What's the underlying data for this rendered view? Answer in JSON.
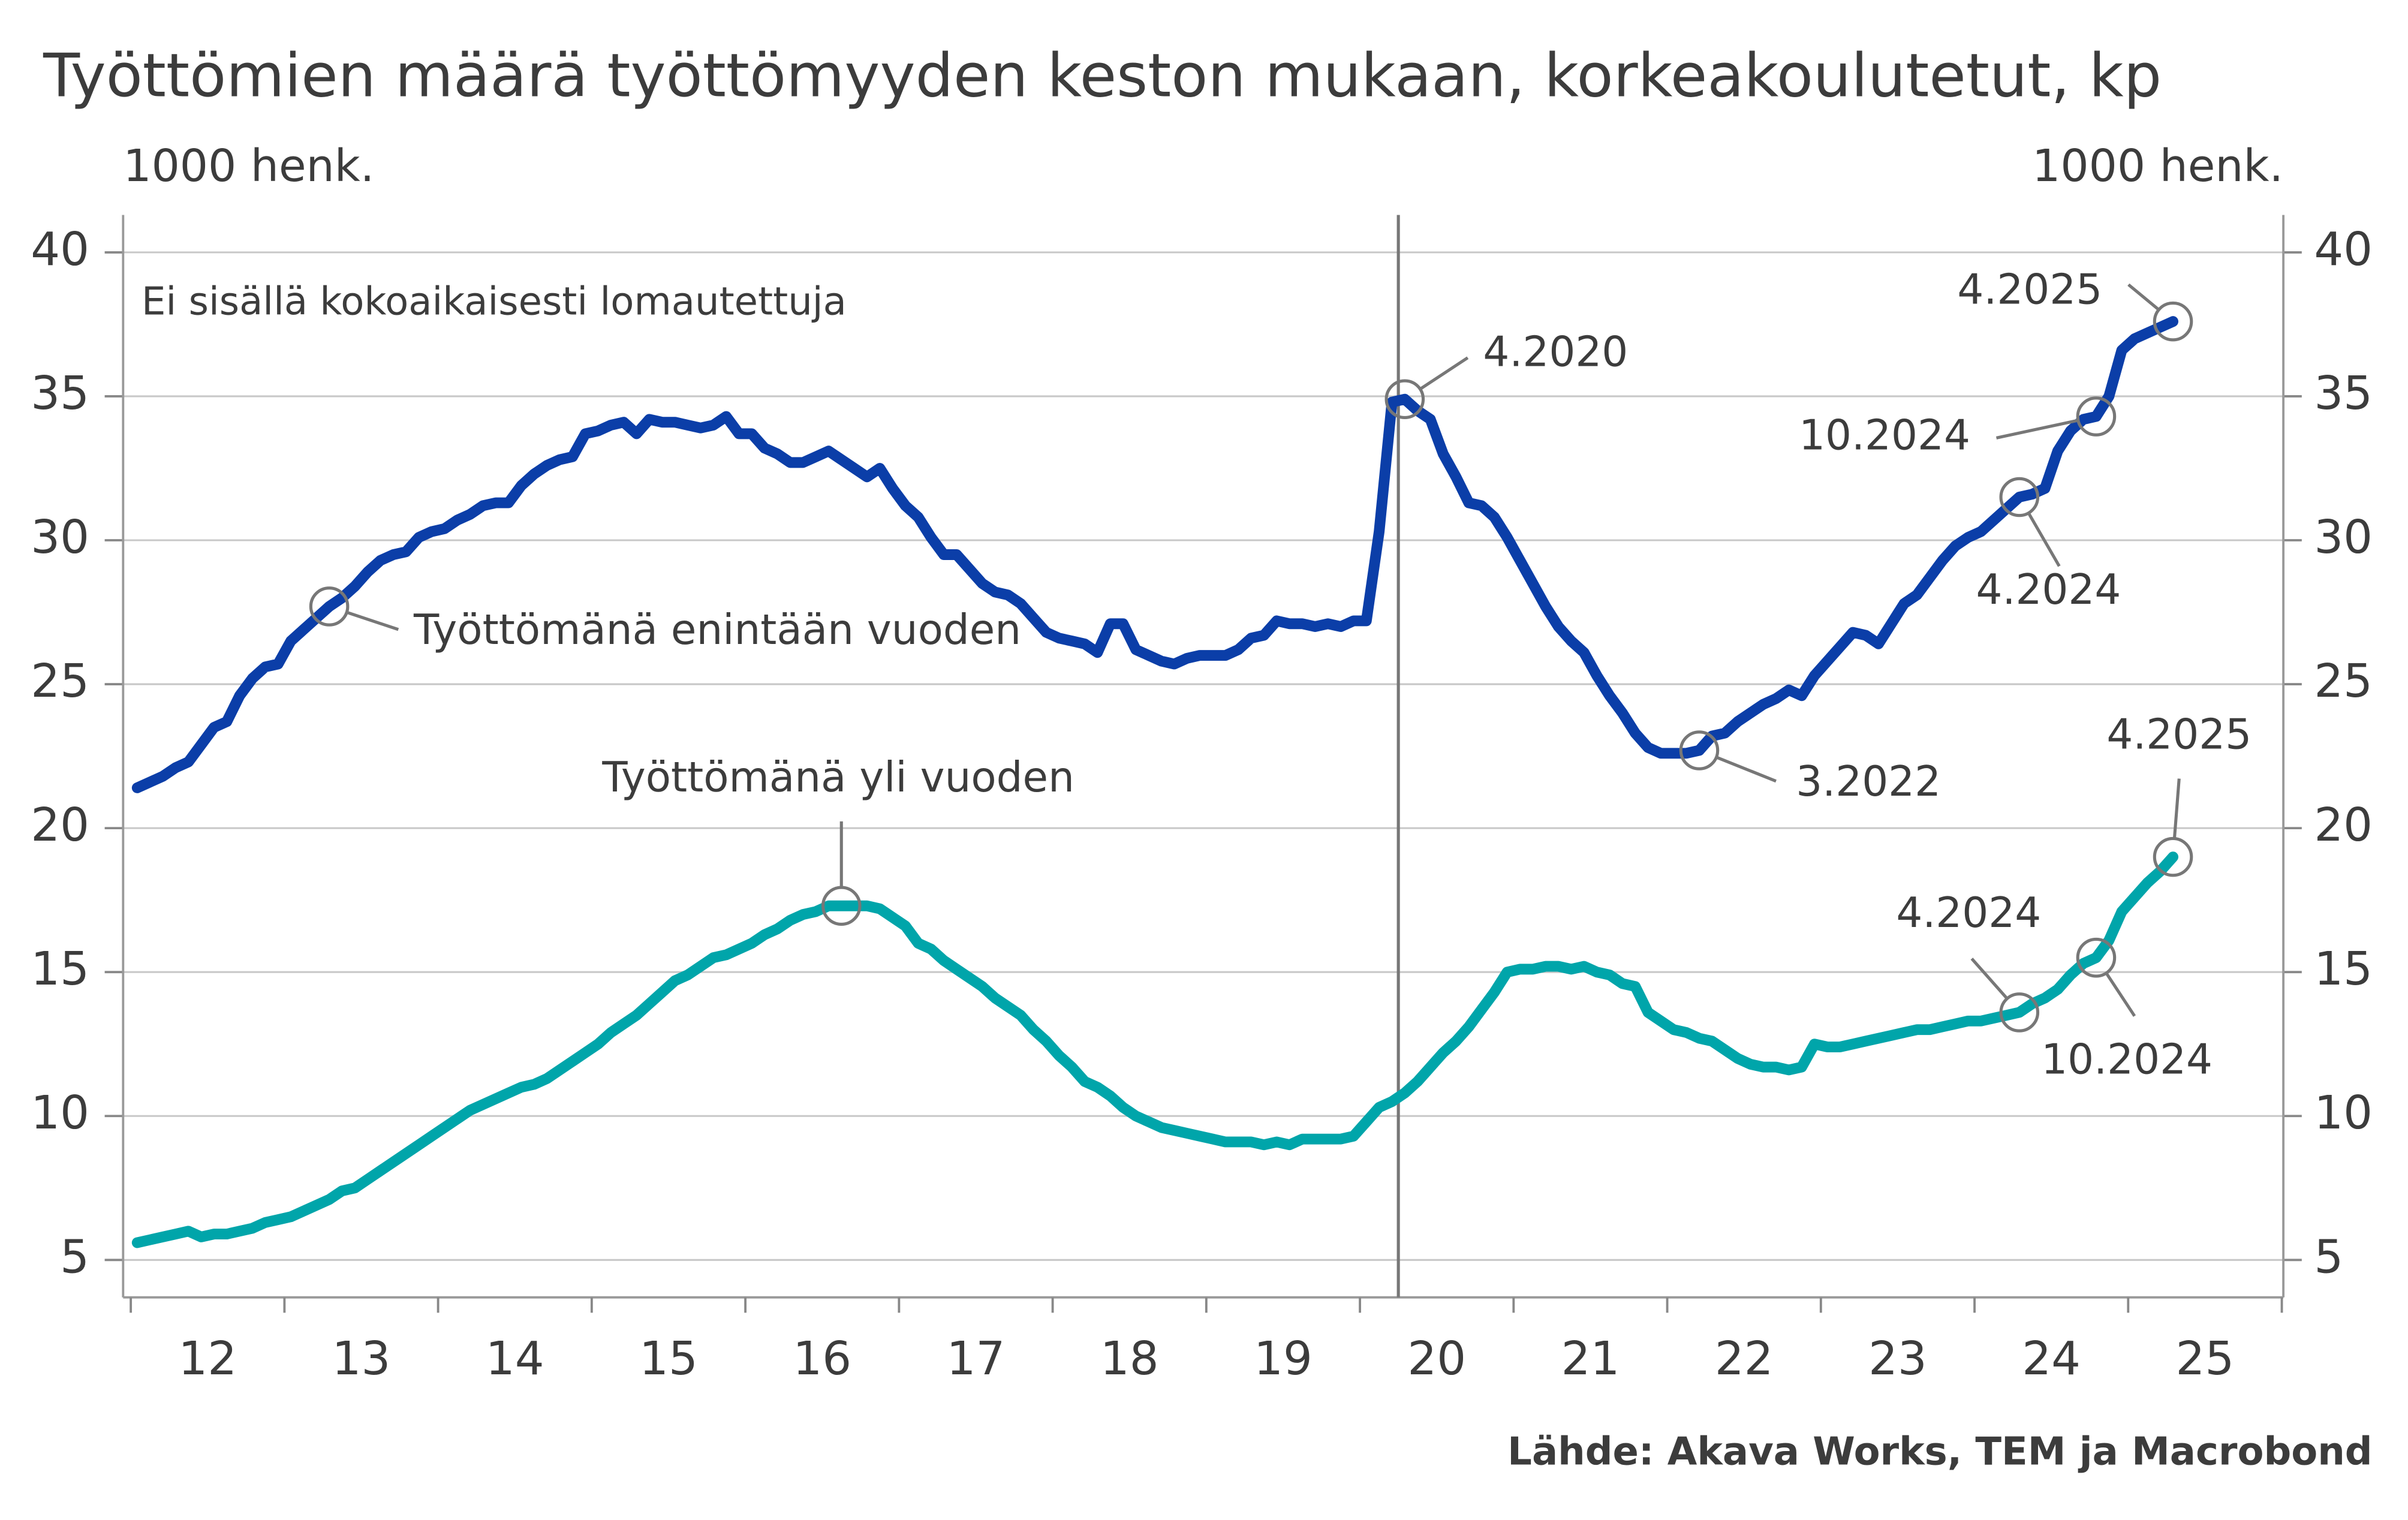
{
  "chart_data": {
    "type": "line",
    "title": "Työttömien määrä työttömyyden keston mukaan, korkeakoulutetut, kp",
    "y_label": "1000 henk.",
    "y2_label": "1000 henk.",
    "note": "Ei sisällä kokoaikaisesti lomautettuja",
    "source": "Lähde: Akava Works, TEM ja Macrobond",
    "x": [
      "2012-01",
      "2012-02",
      "2012-03",
      "2012-04",
      "2012-05",
      "2012-06",
      "2012-07",
      "2012-08",
      "2012-09",
      "2012-10",
      "2012-11",
      "2012-12",
      "2013-01",
      "2013-02",
      "2013-03",
      "2013-04",
      "2013-05",
      "2013-06",
      "2013-07",
      "2013-08",
      "2013-09",
      "2013-10",
      "2013-11",
      "2013-12",
      "2014-01",
      "2014-02",
      "2014-03",
      "2014-04",
      "2014-05",
      "2014-06",
      "2014-07",
      "2014-08",
      "2014-09",
      "2014-10",
      "2014-11",
      "2014-12",
      "2015-01",
      "2015-02",
      "2015-03",
      "2015-04",
      "2015-05",
      "2015-06",
      "2015-07",
      "2015-08",
      "2015-09",
      "2015-10",
      "2015-11",
      "2015-12",
      "2016-01",
      "2016-02",
      "2016-03",
      "2016-04",
      "2016-05",
      "2016-06",
      "2016-07",
      "2016-08",
      "2016-09",
      "2016-10",
      "2016-11",
      "2016-12",
      "2017-01",
      "2017-02",
      "2017-03",
      "2017-04",
      "2017-05",
      "2017-06",
      "2017-07",
      "2017-08",
      "2017-09",
      "2017-10",
      "2017-11",
      "2017-12",
      "2018-01",
      "2018-02",
      "2018-03",
      "2018-04",
      "2018-05",
      "2018-06",
      "2018-07",
      "2018-08",
      "2018-09",
      "2018-10",
      "2018-11",
      "2018-12",
      "2019-01",
      "2019-02",
      "2019-03",
      "2019-04",
      "2019-05",
      "2019-06",
      "2019-07",
      "2019-08",
      "2019-09",
      "2019-10",
      "2019-11",
      "2019-12",
      "2020-01",
      "2020-02",
      "2020-03",
      "2020-04",
      "2020-05",
      "2020-06",
      "2020-07",
      "2020-08",
      "2020-09",
      "2020-10",
      "2020-11",
      "2020-12",
      "2021-01",
      "2021-02",
      "2021-03",
      "2021-04",
      "2021-05",
      "2021-06",
      "2021-07",
      "2021-08",
      "2021-09",
      "2021-10",
      "2021-11",
      "2021-12",
      "2022-01",
      "2022-02",
      "2022-03",
      "2022-04",
      "2022-05",
      "2022-06",
      "2022-07",
      "2022-08",
      "2022-09",
      "2022-10",
      "2022-11",
      "2022-12",
      "2023-01",
      "2023-02",
      "2023-03",
      "2023-04",
      "2023-05",
      "2023-06",
      "2023-07",
      "2023-08",
      "2023-09",
      "2023-10",
      "2023-11",
      "2023-12",
      "2024-01",
      "2024-02",
      "2024-03",
      "2024-04",
      "2024-05",
      "2024-06",
      "2024-07",
      "2024-08",
      "2024-09",
      "2024-10",
      "2024-11",
      "2024-12",
      "2025-01",
      "2025-02",
      "2025-03",
      "2025-04"
    ],
    "series": [
      {
        "name": "Työttömänä enintään vuoden",
        "color": "#0b3ea8",
        "values": [
          21.4,
          21.6,
          21.8,
          22.1,
          22.3,
          22.9,
          23.5,
          23.7,
          24.6,
          25.2,
          25.6,
          25.7,
          26.5,
          26.9,
          27.3,
          27.7,
          28.0,
          28.4,
          28.9,
          29.3,
          29.5,
          29.6,
          30.1,
          30.3,
          30.4,
          30.7,
          30.9,
          31.2,
          31.3,
          31.3,
          31.9,
          32.3,
          32.6,
          32.8,
          32.9,
          33.7,
          33.8,
          34.0,
          34.1,
          33.7,
          34.2,
          34.1,
          34.1,
          34.0,
          33.9,
          34.0,
          34.3,
          33.7,
          33.7,
          33.2,
          33.0,
          32.7,
          32.7,
          32.9,
          33.1,
          32.8,
          32.5,
          32.2,
          32.5,
          31.8,
          31.2,
          30.8,
          30.1,
          29.5,
          29.5,
          29.0,
          28.5,
          28.2,
          28.1,
          27.8,
          27.3,
          26.8,
          26.6,
          26.5,
          26.4,
          26.1,
          27.1,
          27.1,
          26.2,
          26.0,
          25.8,
          25.7,
          25.9,
          26.0,
          26.0,
          26.0,
          26.2,
          26.6,
          26.7,
          27.2,
          27.1,
          27.1,
          27.0,
          27.1,
          27.0,
          27.2,
          27.2,
          30.3,
          34.8,
          34.9,
          34.5,
          34.2,
          33.0,
          32.2,
          31.3,
          31.2,
          30.8,
          30.1,
          29.3,
          28.5,
          27.7,
          27.0,
          26.5,
          26.1,
          25.3,
          24.6,
          24.0,
          23.3,
          22.8,
          22.6,
          22.6,
          22.6,
          22.7,
          23.2,
          23.3,
          23.7,
          24.0,
          24.3,
          24.5,
          24.8,
          24.6,
          25.3,
          25.8,
          26.3,
          26.8,
          26.7,
          26.4,
          27.1,
          27.8,
          28.1,
          28.7,
          29.3,
          29.8,
          30.1,
          30.3,
          30.7,
          31.1,
          31.5,
          31.6,
          31.8,
          33.1,
          33.8,
          34.2,
          34.3,
          35.0,
          36.6,
          37.0,
          37.2,
          37.4,
          37.6
        ],
        "annotations": [
          "4.2020",
          "3.2022",
          "4.2024",
          "10.2024",
          "4.2025"
        ]
      },
      {
        "name": "Työttömänä yli vuoden",
        "color": "#00a5aa",
        "values": [
          5.6,
          5.7,
          5.8,
          5.9,
          6.0,
          5.8,
          5.9,
          5.9,
          6.0,
          6.1,
          6.3,
          6.4,
          6.5,
          6.7,
          6.9,
          7.1,
          7.4,
          7.5,
          7.8,
          8.1,
          8.4,
          8.7,
          9.0,
          9.3,
          9.6,
          9.9,
          10.2,
          10.4,
          10.6,
          10.8,
          11.0,
          11.1,
          11.3,
          11.6,
          11.9,
          12.2,
          12.5,
          12.9,
          13.2,
          13.5,
          13.9,
          14.3,
          14.7,
          14.9,
          15.2,
          15.5,
          15.6,
          15.8,
          16.0,
          16.3,
          16.5,
          16.8,
          17.0,
          17.1,
          17.3,
          17.3,
          17.3,
          17.3,
          17.2,
          16.9,
          16.6,
          16.0,
          15.8,
          15.4,
          15.1,
          14.8,
          14.5,
          14.1,
          13.8,
          13.5,
          13.0,
          12.6,
          12.1,
          11.7,
          11.2,
          11.0,
          10.7,
          10.3,
          10.0,
          9.8,
          9.6,
          9.5,
          9.4,
          9.3,
          9.2,
          9.1,
          9.1,
          9.1,
          9.0,
          9.1,
          9.0,
          9.2,
          9.2,
          9.2,
          9.2,
          9.3,
          9.8,
          10.3,
          10.5,
          10.8,
          11.2,
          11.7,
          12.2,
          12.6,
          13.1,
          13.7,
          14.3,
          15.0,
          15.1,
          15.1,
          15.2,
          15.2,
          15.1,
          15.2,
          15.0,
          14.9,
          14.6,
          14.5,
          13.6,
          13.3,
          13.0,
          12.9,
          12.7,
          12.6,
          12.3,
          12.0,
          11.8,
          11.7,
          11.7,
          11.6,
          11.7,
          12.5,
          12.4,
          12.4,
          12.5,
          12.6,
          12.7,
          12.8,
          12.9,
          13.0,
          13.0,
          13.1,
          13.2,
          13.3,
          13.3,
          13.4,
          13.5,
          13.6,
          13.9,
          14.1,
          14.4,
          14.9,
          15.3,
          15.5,
          16.1,
          17.1,
          17.6,
          18.1,
          18.5,
          19.0
        ],
        "annotations": [
          "4.2024",
          "10.2024",
          "4.2025"
        ]
      }
    ],
    "xlim": [
      "2012-01",
      "2026-01"
    ],
    "xticks": [
      {
        "value": "2012-01",
        "label": "12"
      },
      {
        "value": "2013-01",
        "label": "13"
      },
      {
        "value": "2014-01",
        "label": "14"
      },
      {
        "value": "2015-01",
        "label": "15"
      },
      {
        "value": "2016-01",
        "label": "16"
      },
      {
        "value": "2017-01",
        "label": "17"
      },
      {
        "value": "2018-01",
        "label": "18"
      },
      {
        "value": "2019-01",
        "label": "19"
      },
      {
        "value": "2020-01",
        "label": "20"
      },
      {
        "value": "2021-01",
        "label": "21"
      },
      {
        "value": "2022-01",
        "label": "22"
      },
      {
        "value": "2023-01",
        "label": "23"
      },
      {
        "value": "2024-01",
        "label": "24"
      },
      {
        "value": "2025-01",
        "label": "25"
      }
    ],
    "vline_x": "2020-04",
    "ylim": [
      3.7,
      41.3
    ],
    "yticks": [
      5,
      10,
      15,
      20,
      25,
      30,
      35,
      40
    ],
    "y2lim": [
      3.7,
      41.3
    ],
    "y2ticks": [
      5,
      10,
      15,
      20,
      25,
      30,
      35,
      40
    ],
    "grid": true
  }
}
